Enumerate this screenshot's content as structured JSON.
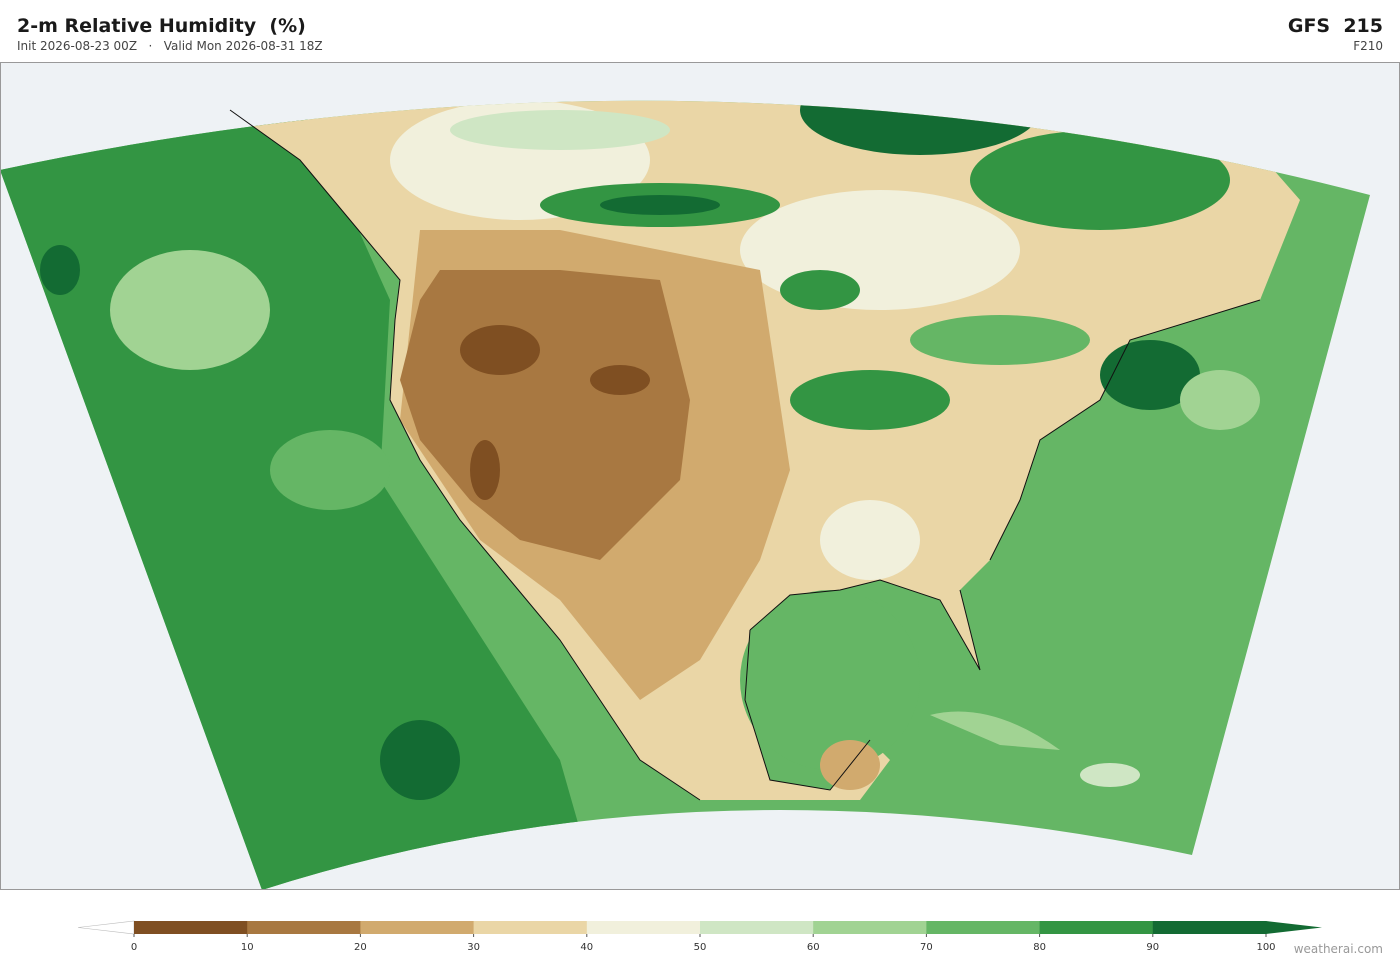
{
  "header": {
    "title": "2-m Relative Humidity  (%)",
    "subtitle": "Init 2026-08-23 00Z   ·   Valid Mon 2026-08-31 18Z",
    "model": "GFS  215",
    "forecast_hour": "F210"
  },
  "colorbar": {
    "ticks": [
      0,
      10,
      20,
      30,
      40,
      50,
      60,
      70,
      80,
      90,
      100
    ],
    "colors": [
      "#7f4f22",
      "#a87841",
      "#d1aa6e",
      "#ead6a6",
      "#f1f0dc",
      "#cfe6c4",
      "#a1d393",
      "#65b665",
      "#339543",
      "#136b33"
    ],
    "under_color": "#ffffff",
    "over_color": "#136b33"
  },
  "footer": {
    "credit": "weatherai.com"
  }
}
